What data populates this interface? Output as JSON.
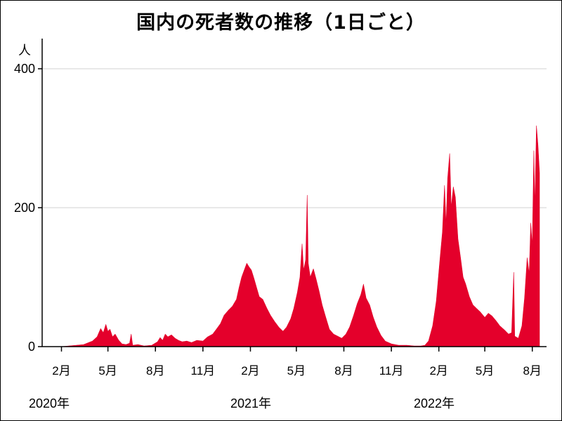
{
  "chart_data": {
    "type": "area",
    "title": "国内の死者数の推移（1日ごと）",
    "ylabel": "人",
    "ylim": [
      0,
      400
    ],
    "yticks": [
      0,
      200,
      400
    ],
    "grid": true,
    "color": "#e4002b",
    "x_tick_labels": [
      "2月",
      "5月",
      "8月",
      "11月",
      "2月",
      "5月",
      "8月",
      "11月",
      "2月",
      "5月",
      "8月"
    ],
    "year_labels": [
      "2020年",
      "2021年",
      "2022年"
    ],
    "x_range": [
      "2020-01-15",
      "2022-08-31"
    ],
    "points": [
      [
        "2020-01-15",
        0
      ],
      [
        "2020-02-01",
        0
      ],
      [
        "2020-02-15",
        1
      ],
      [
        "2020-03-01",
        2
      ],
      [
        "2020-03-15",
        3
      ],
      [
        "2020-03-25",
        6
      ],
      [
        "2020-04-01",
        8
      ],
      [
        "2020-04-10",
        14
      ],
      [
        "2020-04-17",
        26
      ],
      [
        "2020-04-22",
        20
      ],
      [
        "2020-04-27",
        32
      ],
      [
        "2020-05-01",
        22
      ],
      [
        "2020-05-05",
        25
      ],
      [
        "2020-05-10",
        14
      ],
      [
        "2020-05-15",
        18
      ],
      [
        "2020-05-22",
        9
      ],
      [
        "2020-05-28",
        4
      ],
      [
        "2020-06-05",
        3
      ],
      [
        "2020-06-12",
        5
      ],
      [
        "2020-06-15",
        18
      ],
      [
        "2020-06-18",
        2
      ],
      [
        "2020-06-28",
        3
      ],
      [
        "2020-07-10",
        1
      ],
      [
        "2020-07-25",
        2
      ],
      [
        "2020-08-05",
        7
      ],
      [
        "2020-08-10",
        13
      ],
      [
        "2020-08-15",
        9
      ],
      [
        "2020-08-20",
        18
      ],
      [
        "2020-08-25",
        14
      ],
      [
        "2020-09-01",
        17
      ],
      [
        "2020-09-08",
        12
      ],
      [
        "2020-09-15",
        9
      ],
      [
        "2020-09-22",
        7
      ],
      [
        "2020-10-01",
        8
      ],
      [
        "2020-10-10",
        6
      ],
      [
        "2020-10-20",
        9
      ],
      [
        "2020-11-01",
        8
      ],
      [
        "2020-11-10",
        14
      ],
      [
        "2020-11-20",
        18
      ],
      [
        "2020-11-28",
        26
      ],
      [
        "2020-12-05",
        33
      ],
      [
        "2020-12-12",
        45
      ],
      [
        "2020-12-20",
        52
      ],
      [
        "2020-12-28",
        58
      ],
      [
        "2021-01-05",
        68
      ],
      [
        "2021-01-10",
        85
      ],
      [
        "2021-01-15",
        100
      ],
      [
        "2021-01-20",
        110
      ],
      [
        "2021-01-25",
        120
      ],
      [
        "2021-01-29",
        115
      ],
      [
        "2021-02-03",
        110
      ],
      [
        "2021-02-08",
        98
      ],
      [
        "2021-02-13",
        85
      ],
      [
        "2021-02-18",
        72
      ],
      [
        "2021-02-25",
        68
      ],
      [
        "2021-03-05",
        55
      ],
      [
        "2021-03-12",
        45
      ],
      [
        "2021-03-20",
        36
      ],
      [
        "2021-03-28",
        28
      ],
      [
        "2021-04-05",
        22
      ],
      [
        "2021-04-12",
        28
      ],
      [
        "2021-04-20",
        40
      ],
      [
        "2021-04-26",
        55
      ],
      [
        "2021-05-03",
        78
      ],
      [
        "2021-05-08",
        100
      ],
      [
        "2021-05-12",
        148
      ],
      [
        "2021-05-15",
        110
      ],
      [
        "2021-05-19",
        125
      ],
      [
        "2021-05-22",
        218
      ],
      [
        "2021-05-24",
        120
      ],
      [
        "2021-05-28",
        100
      ],
      [
        "2021-06-03",
        112
      ],
      [
        "2021-06-08",
        98
      ],
      [
        "2021-06-14",
        80
      ],
      [
        "2021-06-20",
        60
      ],
      [
        "2021-06-27",
        42
      ],
      [
        "2021-07-04",
        25
      ],
      [
        "2021-07-12",
        18
      ],
      [
        "2021-07-20",
        15
      ],
      [
        "2021-07-28",
        12
      ],
      [
        "2021-08-05",
        18
      ],
      [
        "2021-08-12",
        28
      ],
      [
        "2021-08-20",
        45
      ],
      [
        "2021-08-27",
        62
      ],
      [
        "2021-09-03",
        75
      ],
      [
        "2021-09-08",
        90
      ],
      [
        "2021-09-13",
        70
      ],
      [
        "2021-09-20",
        60
      ],
      [
        "2021-09-27",
        42
      ],
      [
        "2021-10-04",
        28
      ],
      [
        "2021-10-12",
        16
      ],
      [
        "2021-10-20",
        8
      ],
      [
        "2021-11-01",
        4
      ],
      [
        "2021-11-15",
        2
      ],
      [
        "2021-12-01",
        2
      ],
      [
        "2021-12-15",
        1
      ],
      [
        "2021-12-28",
        1
      ],
      [
        "2022-01-05",
        2
      ],
      [
        "2022-01-12",
        8
      ],
      [
        "2022-01-20",
        30
      ],
      [
        "2022-01-27",
        65
      ],
      [
        "2022-02-03",
        125
      ],
      [
        "2022-02-08",
        165
      ],
      [
        "2022-02-12",
        232
      ],
      [
        "2022-02-15",
        175
      ],
      [
        "2022-02-18",
        242
      ],
      [
        "2022-02-22",
        278
      ],
      [
        "2022-02-25",
        200
      ],
      [
        "2022-03-01",
        230
      ],
      [
        "2022-03-05",
        215
      ],
      [
        "2022-03-10",
        155
      ],
      [
        "2022-03-15",
        128
      ],
      [
        "2022-03-20",
        100
      ],
      [
        "2022-03-25",
        90
      ],
      [
        "2022-04-01",
        72
      ],
      [
        "2022-04-08",
        60
      ],
      [
        "2022-04-15",
        55
      ],
      [
        "2022-04-22",
        50
      ],
      [
        "2022-05-01",
        42
      ],
      [
        "2022-05-08",
        48
      ],
      [
        "2022-05-15",
        44
      ],
      [
        "2022-05-22",
        38
      ],
      [
        "2022-05-30",
        30
      ],
      [
        "2022-06-08",
        24
      ],
      [
        "2022-06-16",
        18
      ],
      [
        "2022-06-22",
        20
      ],
      [
        "2022-06-26",
        107
      ],
      [
        "2022-06-28",
        15
      ],
      [
        "2022-07-05",
        12
      ],
      [
        "2022-07-12",
        30
      ],
      [
        "2022-07-17",
        70
      ],
      [
        "2022-07-22",
        128
      ],
      [
        "2022-07-26",
        105
      ],
      [
        "2022-07-29",
        178
      ],
      [
        "2022-08-01",
        145
      ],
      [
        "2022-08-04",
        282
      ],
      [
        "2022-08-06",
        200
      ],
      [
        "2022-08-09",
        318
      ],
      [
        "2022-08-12",
        290
      ],
      [
        "2022-08-15",
        250
      ]
    ]
  }
}
